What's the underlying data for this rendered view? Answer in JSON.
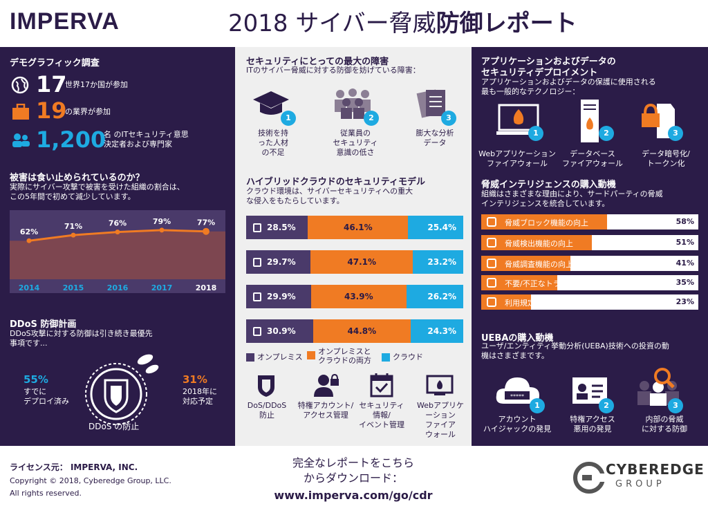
{
  "header": {
    "logo": "IMPERVA",
    "title_year": "2018",
    "title_light": "サイバー脅威",
    "title_bold": "防御レポート"
  },
  "demographics": {
    "title": "デモグラフィック調査",
    "countries_num": "17",
    "countries_text": "世界17か国が参加",
    "industries_num": "19",
    "industries_text": "の業界が参加",
    "people_num": "1,200",
    "people_text_1": "名 のITセキュリティ意思",
    "people_text_2": "決定者および専門家"
  },
  "damage": {
    "title": "被害は食い止められているのか？",
    "desc_1": "実際にサイバー攻撃で被害を受けた組織の割合は、",
    "desc_2": "この5年間で初めて減少しています。"
  },
  "chart_data": {
    "type": "area",
    "categories": [
      "2014",
      "2015",
      "2016",
      "2017",
      "2018"
    ],
    "values": [
      62,
      71,
      76,
      79,
      77
    ],
    "labels": [
      "62%",
      "71%",
      "76%",
      "79%",
      "77%"
    ],
    "ylim": [
      0,
      100
    ]
  },
  "ddos": {
    "title": "DDoS 防御計画",
    "desc_1": "DDoS攻撃に対する防御は引き続き最優先",
    "desc_2": "事項です...",
    "left_pct": "55%",
    "left_text_1": "すでに",
    "left_text_2": "デプロイ済み",
    "right_pct": "31%",
    "right_text_1": "2018年に",
    "right_text_2": "対応予定",
    "center_label": "DDoS の防止"
  },
  "obstacles": {
    "title": "セキュリティにとっての最大の障害",
    "desc": "ITのサイバー脅威に対する防御を妨げている障害：",
    "items": [
      {
        "num": "1",
        "l1": "技術を持",
        "l2": "った人材",
        "l3": "の不足"
      },
      {
        "num": "2",
        "l1": "従業員の",
        "l2": "セキュリティ",
        "l3": "意識の低さ"
      },
      {
        "num": "3",
        "l1": "膨大な分析",
        "l2": "データ",
        "l3": ""
      }
    ]
  },
  "hybrid": {
    "title": "ハイブリッドクラウドのセキュリティモデル",
    "desc_1": "クラウド環境は、サイバーセキュリティへの重大",
    "desc_2": "な侵入をもたらしています。",
    "rows": [
      {
        "a": "28.5%",
        "b": "46.1%",
        "c": "25.4%",
        "av": 28.5,
        "bv": 46.1,
        "cv": 25.4
      },
      {
        "a": "29.7%",
        "b": "47.1%",
        "c": "23.2%",
        "av": 29.7,
        "bv": 47.1,
        "cv": 23.2
      },
      {
        "a": "29.9%",
        "b": "43.9%",
        "c": "26.2%",
        "av": 29.9,
        "bv": 43.9,
        "cv": 26.2
      },
      {
        "a": "30.9%",
        "b": "44.8%",
        "c": "24.3%",
        "av": 30.9,
        "bv": 44.8,
        "cv": 24.3
      }
    ],
    "legend_onprem": "オンプレミス",
    "legend_both_1": "オンプレミスと",
    "legend_both_2": "クラウドの両方",
    "legend_cloud": "クラウド",
    "icons": [
      {
        "l1": "DoS/DDoS",
        "l2": "防止",
        "l3": "",
        "l4": ""
      },
      {
        "l1": "特権アカウント/",
        "l2": "アクセス管理",
        "l3": "",
        "l4": ""
      },
      {
        "l1": "セキュリティ",
        "l2": "情報/",
        "l3": "イベント管理",
        "l4": ""
      },
      {
        "l1": "Webアプリケ",
        "l2": "ーション",
        "l3": "ファイア",
        "l4": "ウォール"
      }
    ]
  },
  "appdata": {
    "title_1": "アプリケーションおよびデータの",
    "title_2": "セキュリティデプロイメント",
    "desc_1": "アプリケーションおよびデータの保護に使用される",
    "desc_2": "最も一般的なテクノロジー：",
    "items": [
      {
        "num": "1",
        "l1": "Webアプリケーション",
        "l2": "ファイアウォール"
      },
      {
        "num": "2",
        "l1": "データベース",
        "l2": "ファイアウォール"
      },
      {
        "num": "3",
        "l1": "データ暗号化/",
        "l2": "トークン化"
      }
    ]
  },
  "threat_intel": {
    "title": "脅威インテリジェンスの購入動機",
    "desc_1": "組織はさまざまな理由により、サードパーティの脅威",
    "desc_2": "インテリジェンスを統合しています。",
    "bars": [
      {
        "label": "脅威ブロック機能の向上",
        "value": "58%",
        "v": 58
      },
      {
        "label": "脅威検出機能の向上",
        "value": "51%",
        "v": 51
      },
      {
        "label": "脅威調査機能の向上",
        "value": "41%",
        "v": 41
      },
      {
        "label": "不要/不正なトラフィックの削減",
        "value": "35%",
        "v": 35
      },
      {
        "label": "利用規定の運用向上",
        "value": "23%",
        "v": 23
      }
    ]
  },
  "ueba": {
    "title": "UEBAの購入動機",
    "desc_1": "ユーザ/エンティティ挙動分析(UEBA)技術への投資の動",
    "desc_2": "機はさまざまです。",
    "password_mask": "*****",
    "items": [
      {
        "num": "1",
        "l1": "アカウント",
        "l2": "ハイジャックの発見"
      },
      {
        "num": "2",
        "l1": "特権アクセス",
        "l2": "悪用の発見"
      },
      {
        "num": "3",
        "l1": "内部の脅威",
        "l2": "に対する防御"
      }
    ]
  },
  "footer": {
    "license": "ライセンス元： IMPERVA, INC.",
    "copyright": "Copyright © 2018, Cyberedge Group, LLC.",
    "rights": "All rights reserved.",
    "download_1": "完全なレポートをこちら",
    "download_2": "からダウンロード：",
    "url": "www.imperva.com/go/cdr",
    "brand_1": "CYBEREDGE",
    "brand_2": "GROUP"
  },
  "colors": {
    "dark": "#2b1c48",
    "orange": "#f07b23",
    "blue": "#1eaae1",
    "purple": "#4a3a6a"
  }
}
